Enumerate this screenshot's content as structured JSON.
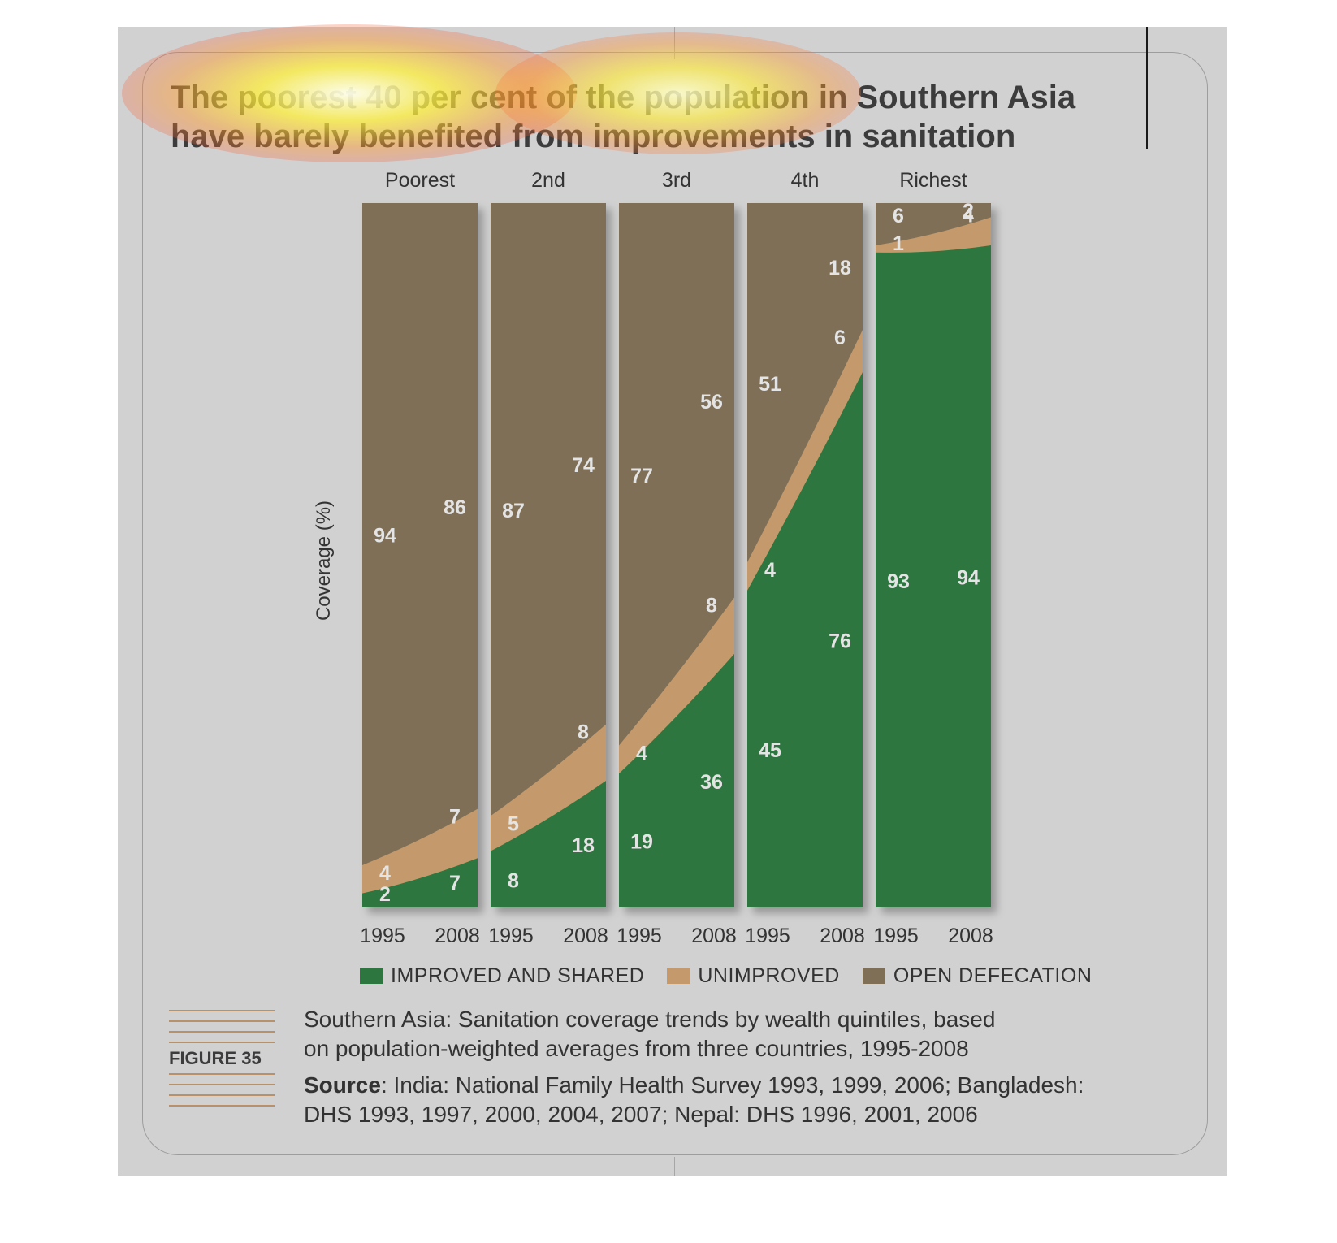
{
  "headline": {
    "line1": "The poorest 40 per cent of the population in Southern Asia",
    "line2": "have barely benefited from improvements in sanitation"
  },
  "chart_data": {
    "type": "area",
    "ylabel": "Coverage (%)",
    "groups": [
      "Poorest",
      "2nd",
      "3rd",
      "4th",
      "Richest"
    ],
    "years": [
      "1995",
      "2008"
    ],
    "series": [
      {
        "name": "IMPROVED AND SHARED",
        "color": "#2e7640",
        "values": [
          [
            2,
            7
          ],
          [
            8,
            18
          ],
          [
            19,
            36
          ],
          [
            45,
            76
          ],
          [
            93,
            94
          ]
        ]
      },
      {
        "name": "UNIMPROVED",
        "color": "#c49a6c",
        "values": [
          [
            4,
            7
          ],
          [
            5,
            8
          ],
          [
            4,
            8
          ],
          [
            4,
            6
          ],
          [
            1,
            4
          ]
        ]
      },
      {
        "name": "OPEN DEFECATION",
        "color": "#7f6f57",
        "values": [
          [
            94,
            86
          ],
          [
            87,
            74
          ],
          [
            77,
            56
          ],
          [
            51,
            18
          ],
          [
            6,
            2
          ]
        ]
      }
    ],
    "ylim": [
      0,
      100
    ],
    "stacked": true,
    "grid": false,
    "legend": "bottom"
  },
  "figure": {
    "label": "FIGURE 35",
    "caption_line1": "Southern Asia: Sanitation coverage trends by wealth quintiles, based",
    "caption_line2": "on population-weighted averages from three countries, 1995-2008",
    "source_label": "Source",
    "source_line1": ": India: National Family Health Survey 1993, 1999, 2006; Bangladesh:",
    "source_line2": "DHS 1993, 1997, 2000, 2004, 2007; Nepal: DHS 1996, 2001, 2006"
  }
}
